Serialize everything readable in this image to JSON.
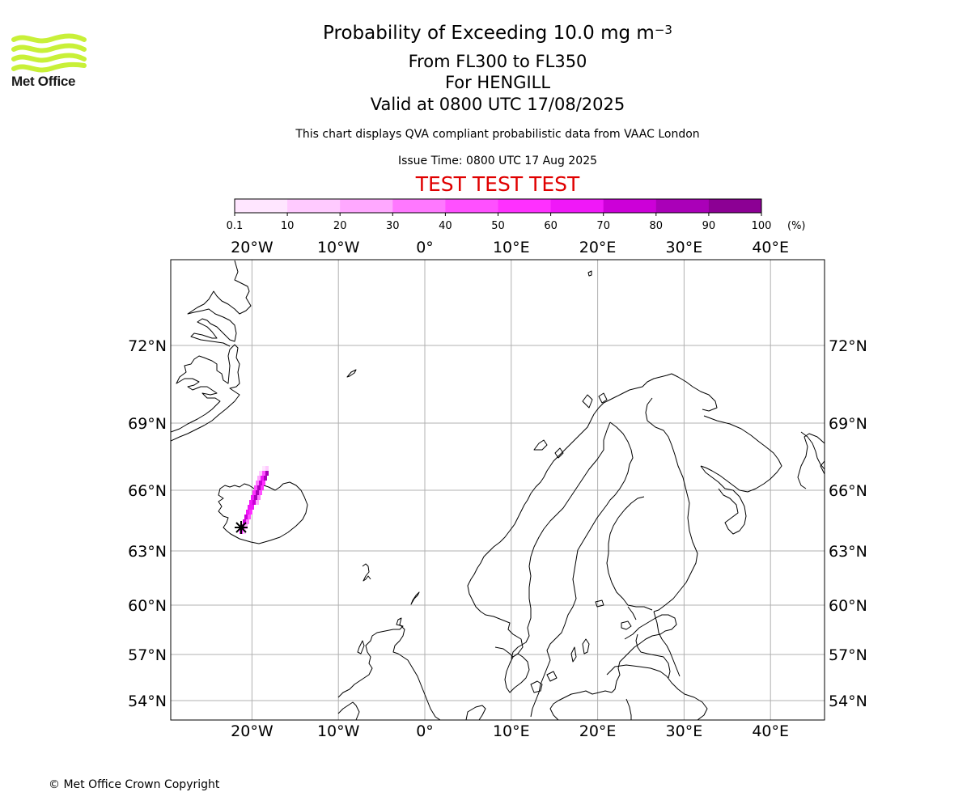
{
  "header": {
    "title_main": "Probability of Exceeding 10.0 mg m",
    "title_exp": "−3",
    "flight_levels": "From FL300 to FL350",
    "volcano_line": "For HENGILL",
    "valid_line": "Valid at 0800 UTC 17/08/2025",
    "disclaimer": "This chart displays QVA compliant probabilistic data from VAAC London",
    "issue_time": "Issue Time: 0800 UTC 17 Aug 2025",
    "test_banner": "TEST TEST TEST"
  },
  "logo": {
    "text": "Met Office",
    "wave_color": "#c8f038"
  },
  "colorbar": {
    "tick_labels": [
      "0.1",
      "10",
      "20",
      "30",
      "40",
      "50",
      "60",
      "70",
      "80",
      "90",
      "100"
    ],
    "unit_label": "(%)",
    "colors": [
      "#ffe6ff",
      "#ffcaff",
      "#ffa8ff",
      "#ff78ff",
      "#ff50ff",
      "#ff30ff",
      "#f018f8",
      "#cc00d8",
      "#aa00b8",
      "#8c0094",
      "#660066"
    ]
  },
  "map": {
    "lon_labels": [
      "20°W",
      "10°W",
      "0°",
      "10°E",
      "20°E",
      "30°E",
      "40°E"
    ],
    "lat_labels": [
      "72°N",
      "69°N",
      "66°N",
      "63°N",
      "60°N",
      "57°N",
      "54°N"
    ],
    "lon_values": [
      -20,
      -10,
      0,
      10,
      20,
      30,
      40
    ],
    "lat_values": [
      72,
      69,
      66,
      63,
      60,
      57,
      54
    ],
    "grid_color": "#b0b0b0",
    "volcano_marker": "volcano-marker-icon"
  },
  "footer": {
    "copyright": "© Met Office Crown Copyright"
  }
}
